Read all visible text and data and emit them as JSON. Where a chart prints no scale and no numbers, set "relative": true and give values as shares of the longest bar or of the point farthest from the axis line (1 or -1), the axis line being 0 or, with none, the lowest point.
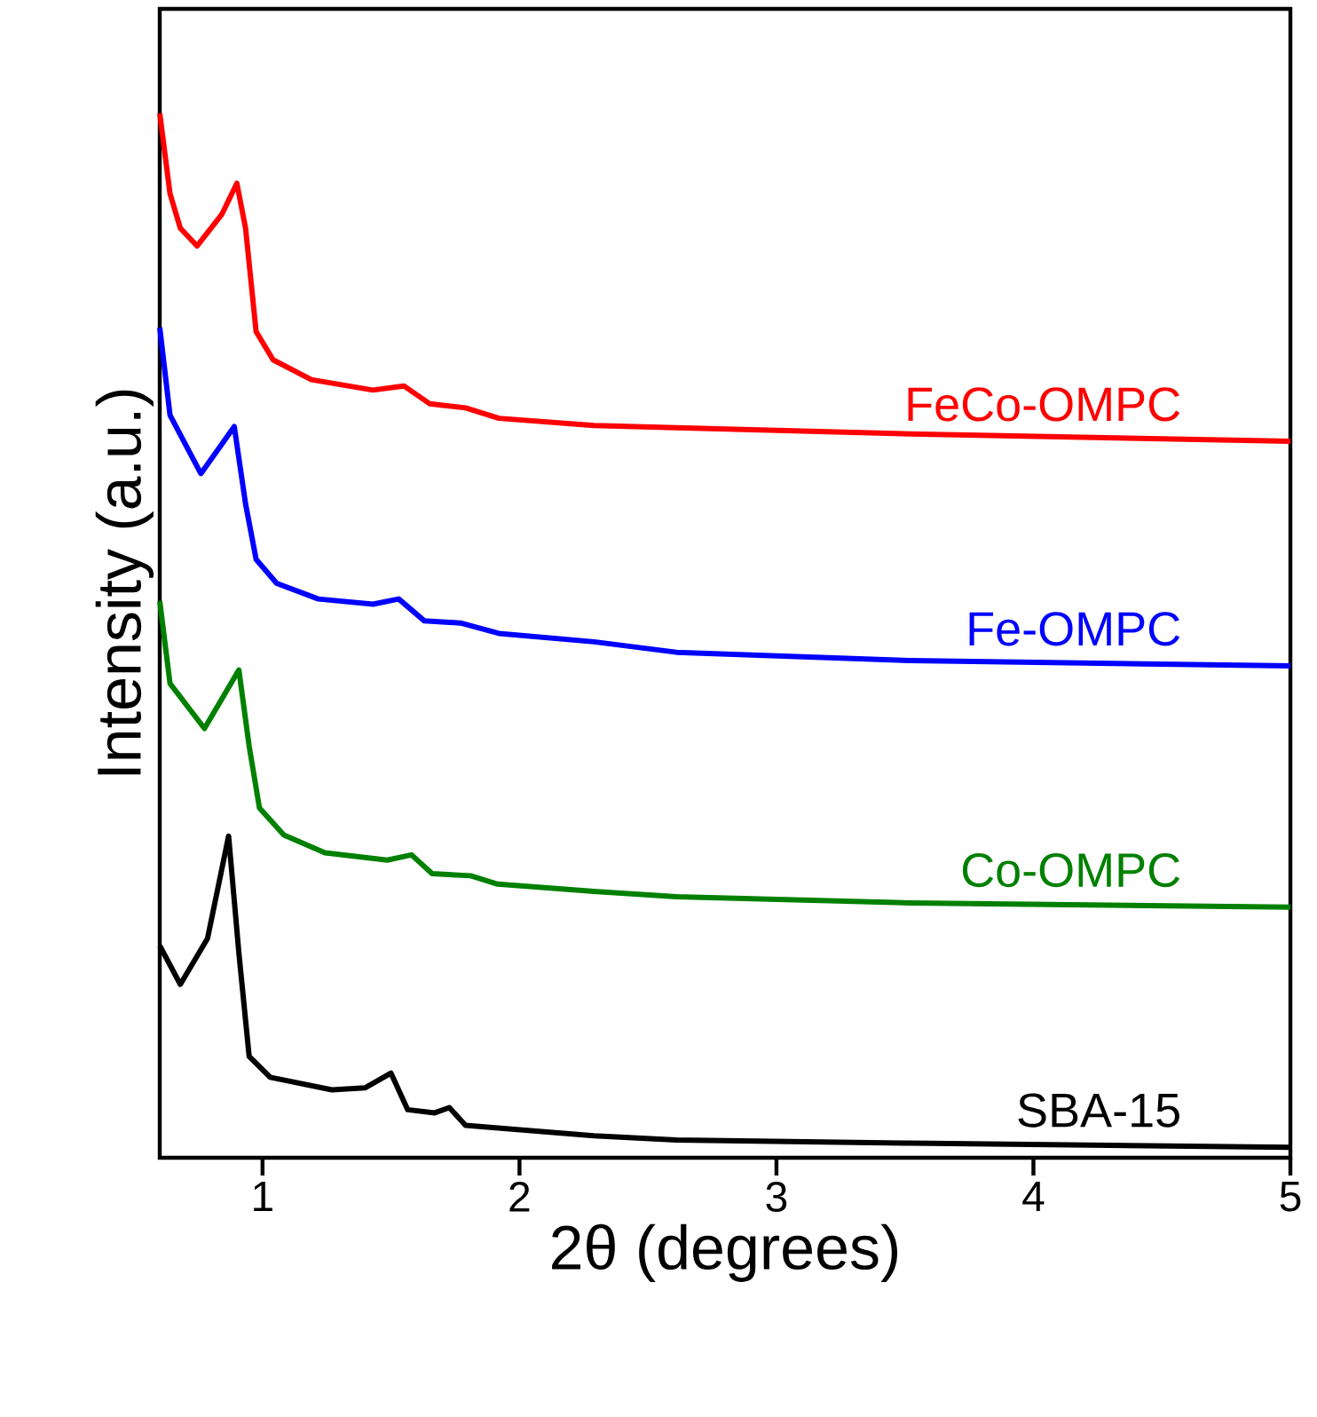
{
  "chart_data": {
    "type": "line",
    "xlabel": "2θ (degrees)",
    "ylabel": "Intensity (a.u.)",
    "relative": true,
    "xlim": [
      0.6,
      5
    ],
    "xticks": [
      1,
      2,
      3,
      4,
      5
    ],
    "grid": false,
    "series": [
      {
        "name": "FeCo-OMPC",
        "color": "#ff0000",
        "x": [
          0.6,
          0.64,
          0.68,
          0.745,
          0.841,
          0.9,
          0.934,
          0.975,
          1.041,
          1.19,
          1.43,
          1.55,
          1.65,
          1.79,
          1.92,
          2.29,
          2.61,
          3.52,
          5.0
        ],
        "values": [
          1.0,
          0.923,
          0.89,
          0.873,
          0.903,
          0.933,
          0.89,
          0.791,
          0.764,
          0.745,
          0.735,
          0.739,
          0.722,
          0.718,
          0.708,
          0.701,
          0.699,
          0.693,
          0.686
        ]
      },
      {
        "name": "Fe-OMPC",
        "color": "#0000ff",
        "x": [
          0.6,
          0.64,
          0.76,
          0.89,
          0.934,
          0.975,
          1.055,
          1.217,
          1.43,
          1.53,
          1.63,
          1.77,
          1.92,
          2.29,
          2.61,
          3.52,
          5.0
        ],
        "values": [
          0.795,
          0.711,
          0.655,
          0.7,
          0.626,
          0.573,
          0.55,
          0.535,
          0.53,
          0.535,
          0.514,
          0.512,
          0.502,
          0.494,
          0.484,
          0.476,
          0.471
        ]
      },
      {
        "name": "Co-OMPC",
        "color": "#008000",
        "x": [
          0.6,
          0.64,
          0.774,
          0.908,
          0.948,
          0.988,
          1.083,
          1.243,
          1.485,
          1.58,
          1.66,
          1.81,
          1.915,
          2.29,
          2.61,
          3.52,
          5.0
        ],
        "values": [
          0.533,
          0.454,
          0.411,
          0.467,
          0.394,
          0.335,
          0.309,
          0.292,
          0.285,
          0.29,
          0.272,
          0.27,
          0.262,
          0.255,
          0.25,
          0.244,
          0.24
        ]
      },
      {
        "name": "SBA-15",
        "color": "#000000",
        "x": [
          0.6,
          0.68,
          0.786,
          0.868,
          0.908,
          0.948,
          1.03,
          1.27,
          1.4,
          1.5,
          1.565,
          1.67,
          1.727,
          1.79,
          2.29,
          2.61,
          3.52,
          5.0
        ],
        "values": [
          0.203,
          0.166,
          0.21,
          0.308,
          0.196,
          0.097,
          0.077,
          0.065,
          0.067,
          0.081,
          0.046,
          0.043,
          0.048,
          0.031,
          0.021,
          0.017,
          0.014,
          0.01
        ]
      }
    ]
  }
}
